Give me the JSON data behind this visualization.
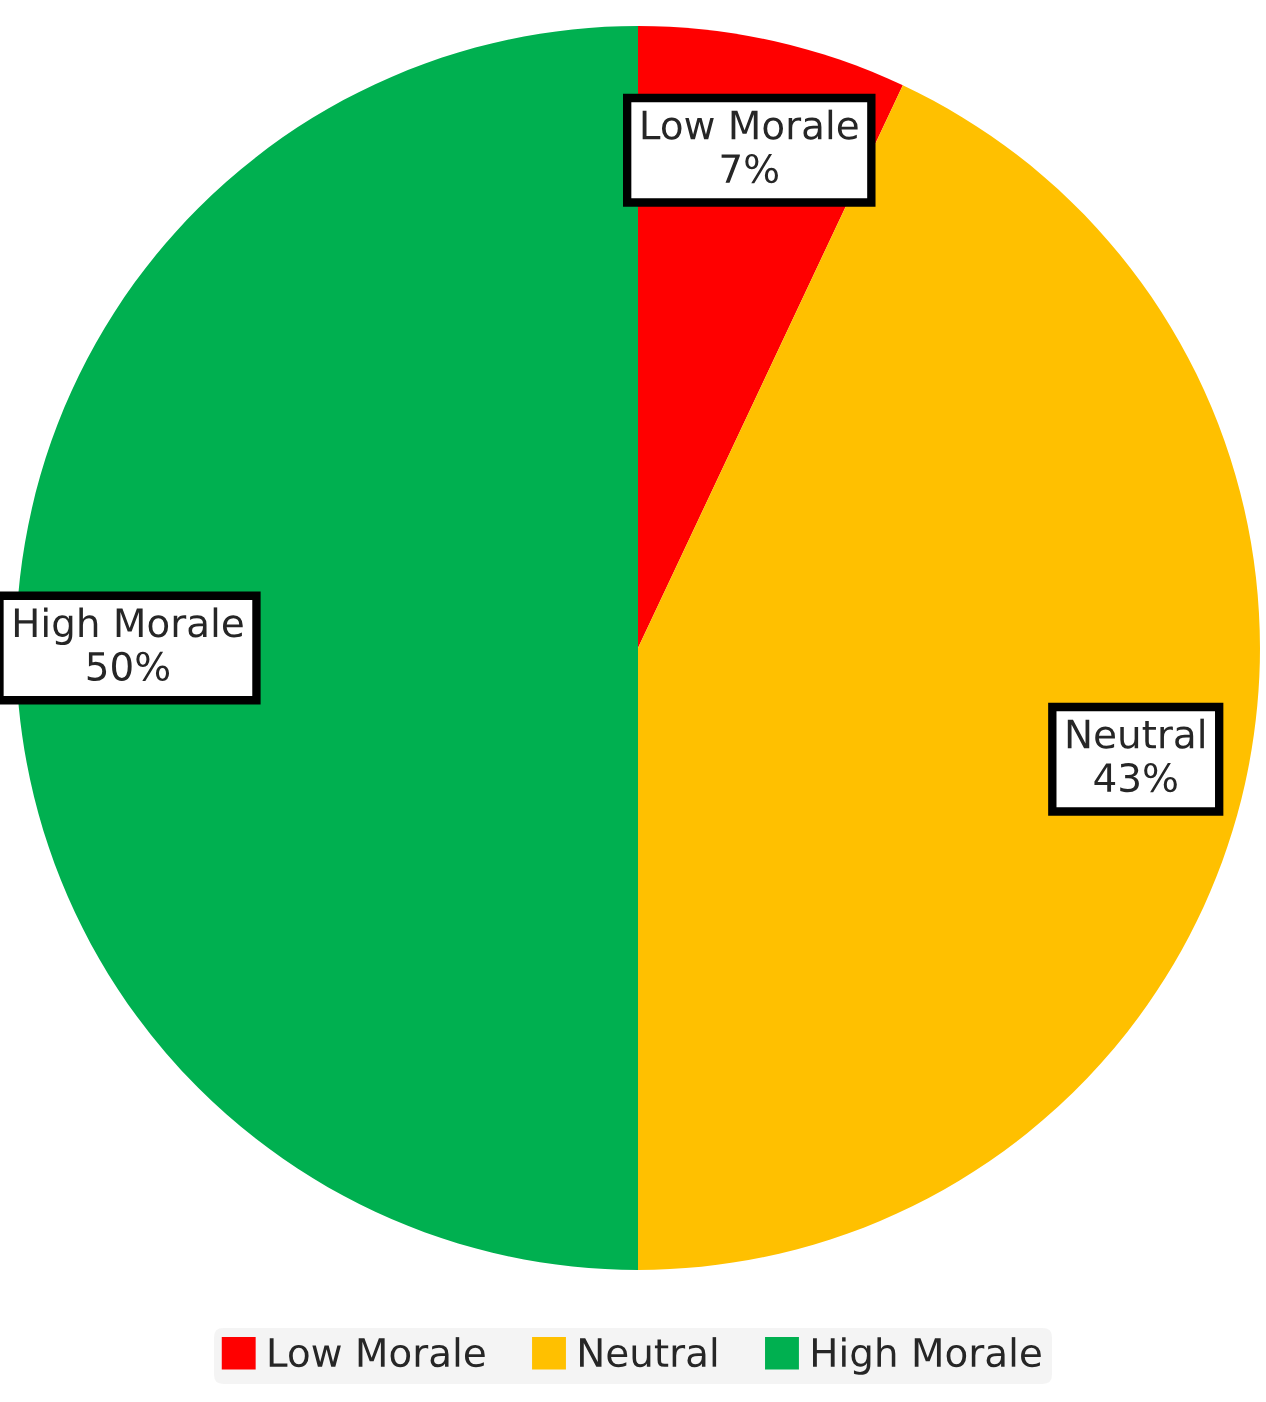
{
  "chart_data": {
    "type": "pie",
    "categories": [
      "Low Morale",
      "Neutral",
      "High Morale"
    ],
    "values": [
      7,
      43,
      50
    ],
    "value_labels": [
      "7%",
      "43%",
      "50%"
    ],
    "colors": [
      "#ff0000",
      "#ffc000",
      "#00b050"
    ],
    "legend": "bottom"
  }
}
